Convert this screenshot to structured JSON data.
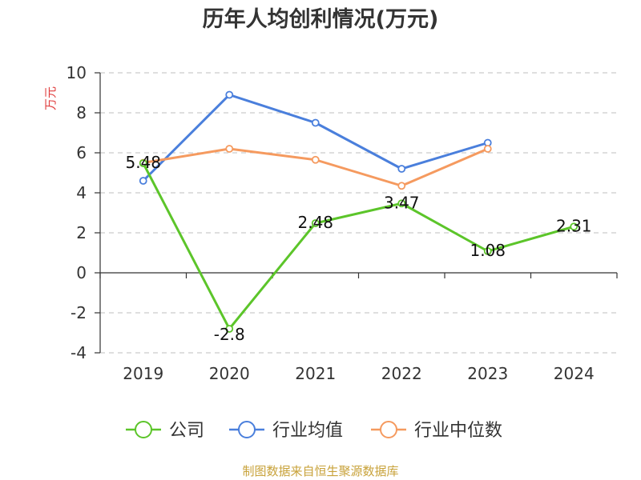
{
  "title": "历年人均创利情况(万元)",
  "source_note": "制图数据来自恒生聚源数据库",
  "colors": {
    "title": "#333333",
    "ylabel": "#e03c3c",
    "source": "#c8a23a",
    "grid": "#cccccc",
    "axis": "#333333"
  },
  "chart_data": {
    "type": "line",
    "title": "历年人均创利情况(万元)",
    "xlabel": "",
    "ylabel": "万元",
    "categories": [
      "2019",
      "2020",
      "2021",
      "2022",
      "2023",
      "2024"
    ],
    "ylim": [
      -4,
      10
    ],
    "yticks": [
      -4,
      -2,
      0,
      2,
      4,
      6,
      8,
      10
    ],
    "ytick_labels": [
      "-4",
      "-2",
      "0",
      "2",
      "4",
      "6",
      "8",
      "10"
    ],
    "grid": "horizontal dashed",
    "legend_position": "bottom",
    "series": [
      {
        "name": "公司",
        "color": "#5cc52a",
        "values": [
          5.48,
          -2.8,
          2.48,
          3.47,
          1.08,
          2.31
        ],
        "labels": [
          "5.48",
          "-2.8",
          "2.48",
          "3.47",
          "1.08",
          "2.31"
        ]
      },
      {
        "name": "行业均值",
        "color": "#4a7fdc",
        "values": [
          4.6,
          8.9,
          7.5,
          5.2,
          6.5,
          null
        ],
        "labels": []
      },
      {
        "name": "行业中位数",
        "color": "#f59a5f",
        "values": [
          5.5,
          6.2,
          5.65,
          4.35,
          6.2,
          null
        ],
        "labels": []
      }
    ]
  }
}
